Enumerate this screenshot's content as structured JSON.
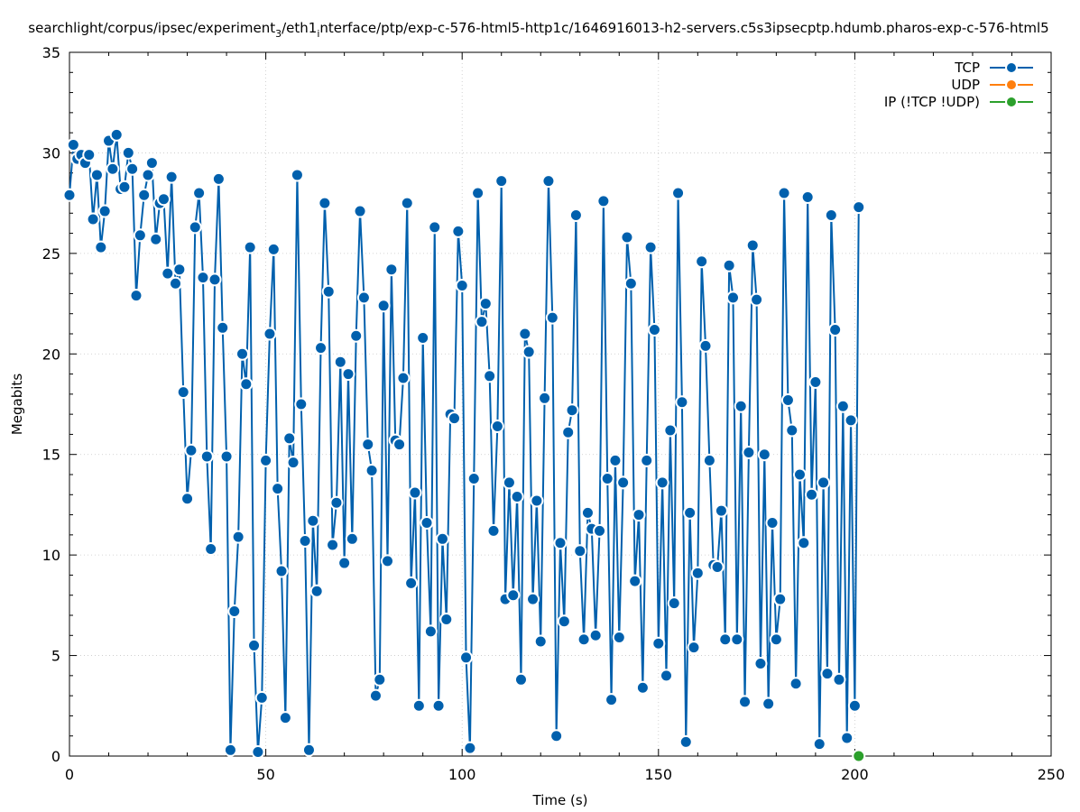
{
  "chart_data": {
    "type": "line",
    "title": "searchlight/corpus/ipsec/experiment",
    "title_sub": "3",
    "title_mid": "/eth1",
    "title_sub2": "i",
    "title_rest": "nterface/ptp/exp-c-576-html5-http1c/1646916013-h2-servers.c5s3ipsecptp.hdumb.pharos-exp-c-576-html5",
    "xlabel": "Time (s)",
    "ylabel": "Megabits",
    "xlim": [
      0,
      250
    ],
    "ylim": [
      0,
      35
    ],
    "xticks": [
      0,
      50,
      100,
      150,
      200,
      250
    ],
    "yticks": [
      0,
      5,
      10,
      15,
      20,
      25,
      30,
      35
    ],
    "grid": true,
    "legend_position": "top-right",
    "series": [
      {
        "name": "TCP",
        "color": "#0060ad",
        "points": [
          [
            0,
            27.9
          ],
          [
            1,
            30.4
          ],
          [
            2,
            29.7
          ],
          [
            3,
            29.9
          ],
          [
            4,
            29.5
          ],
          [
            5,
            29.9
          ],
          [
            6,
            26.7
          ],
          [
            7,
            28.9
          ],
          [
            8,
            25.3
          ],
          [
            9,
            27.1
          ],
          [
            10,
            30.6
          ],
          [
            11,
            29.2
          ],
          [
            12,
            30.9
          ],
          [
            13,
            28.2
          ],
          [
            14,
            28.3
          ],
          [
            15,
            30.0
          ],
          [
            16,
            29.2
          ],
          [
            17,
            22.9
          ],
          [
            18,
            25.9
          ],
          [
            19,
            27.9
          ],
          [
            20,
            28.9
          ],
          [
            21,
            29.5
          ],
          [
            22,
            25.7
          ],
          [
            23,
            27.5
          ],
          [
            24,
            27.7
          ],
          [
            25,
            24.0
          ],
          [
            26,
            28.8
          ],
          [
            27,
            23.5
          ],
          [
            28,
            24.2
          ],
          [
            29,
            18.1
          ],
          [
            30,
            12.8
          ],
          [
            31,
            15.2
          ],
          [
            32,
            26.3
          ],
          [
            33,
            28.0
          ],
          [
            34,
            23.8
          ],
          [
            35,
            14.9
          ],
          [
            36,
            10.3
          ],
          [
            37,
            23.7
          ],
          [
            38,
            28.7
          ],
          [
            39,
            21.3
          ],
          [
            40,
            14.9
          ],
          [
            41,
            0.3
          ],
          [
            42,
            7.2
          ],
          [
            43,
            10.9
          ],
          [
            44,
            20.0
          ],
          [
            45,
            18.5
          ],
          [
            46,
            25.3
          ],
          [
            47,
            5.5
          ],
          [
            48,
            0.2
          ],
          [
            49,
            2.9
          ],
          [
            50,
            14.7
          ],
          [
            51,
            21.0
          ],
          [
            52,
            25.2
          ],
          [
            53,
            13.3
          ],
          [
            54,
            9.2
          ],
          [
            55,
            1.9
          ],
          [
            56,
            15.8
          ],
          [
            57,
            14.6
          ],
          [
            58,
            28.9
          ],
          [
            59,
            17.5
          ],
          [
            60,
            10.7
          ],
          [
            61,
            0.3
          ],
          [
            62,
            11.7
          ],
          [
            63,
            8.2
          ],
          [
            64,
            20.3
          ],
          [
            65,
            27.5
          ],
          [
            66,
            23.1
          ],
          [
            67,
            10.5
          ],
          [
            68,
            12.6
          ],
          [
            69,
            19.6
          ],
          [
            70,
            9.6
          ],
          [
            71,
            19.0
          ],
          [
            72,
            10.8
          ],
          [
            73,
            20.9
          ],
          [
            74,
            27.1
          ],
          [
            75,
            22.8
          ],
          [
            76,
            15.5
          ],
          [
            77,
            14.2
          ],
          [
            78,
            3.0
          ],
          [
            79,
            3.8
          ],
          [
            80,
            22.4
          ],
          [
            81,
            9.7
          ],
          [
            82,
            24.2
          ],
          [
            83,
            15.7
          ],
          [
            84,
            15.5
          ],
          [
            85,
            18.8
          ],
          [
            86,
            27.5
          ],
          [
            87,
            8.6
          ],
          [
            88,
            13.1
          ],
          [
            89,
            2.5
          ],
          [
            90,
            20.8
          ],
          [
            91,
            11.6
          ],
          [
            92,
            6.2
          ],
          [
            93,
            26.3
          ],
          [
            94,
            2.5
          ],
          [
            95,
            10.8
          ],
          [
            96,
            6.8
          ],
          [
            97,
            17.0
          ],
          [
            98,
            16.8
          ],
          [
            99,
            26.1
          ],
          [
            100,
            23.4
          ],
          [
            101,
            4.9
          ],
          [
            102,
            0.4
          ],
          [
            103,
            13.8
          ],
          [
            104,
            28.0
          ],
          [
            105,
            21.6
          ],
          [
            106,
            22.5
          ],
          [
            107,
            18.9
          ],
          [
            108,
            11.2
          ],
          [
            109,
            16.4
          ],
          [
            110,
            28.6
          ],
          [
            111,
            7.8
          ],
          [
            112,
            13.6
          ],
          [
            113,
            8.0
          ],
          [
            114,
            12.9
          ],
          [
            115,
            3.8
          ],
          [
            116,
            21.0
          ],
          [
            117,
            20.1
          ],
          [
            118,
            7.8
          ],
          [
            119,
            12.7
          ],
          [
            120,
            5.7
          ],
          [
            121,
            17.8
          ],
          [
            122,
            28.6
          ],
          [
            123,
            21.8
          ],
          [
            124,
            1.0
          ],
          [
            125,
            10.6
          ],
          [
            126,
            6.7
          ],
          [
            127,
            16.1
          ],
          [
            128,
            17.2
          ],
          [
            129,
            26.9
          ],
          [
            130,
            10.2
          ],
          [
            131,
            5.8
          ],
          [
            132,
            12.1
          ],
          [
            133,
            11.3
          ],
          [
            134,
            6.0
          ],
          [
            135,
            11.2
          ],
          [
            136,
            27.6
          ],
          [
            137,
            13.8
          ],
          [
            138,
            2.8
          ],
          [
            139,
            14.7
          ],
          [
            140,
            5.9
          ],
          [
            141,
            13.6
          ],
          [
            142,
            25.8
          ],
          [
            143,
            23.5
          ],
          [
            144,
            8.7
          ],
          [
            145,
            12.0
          ],
          [
            146,
            3.4
          ],
          [
            147,
            14.7
          ],
          [
            148,
            25.3
          ],
          [
            149,
            21.2
          ],
          [
            150,
            5.6
          ],
          [
            151,
            13.6
          ],
          [
            152,
            4.0
          ],
          [
            153,
            16.2
          ],
          [
            154,
            7.6
          ],
          [
            155,
            28.0
          ],
          [
            156,
            17.6
          ],
          [
            157,
            0.7
          ],
          [
            158,
            12.1
          ],
          [
            159,
            5.4
          ],
          [
            160,
            9.1
          ],
          [
            161,
            24.6
          ],
          [
            162,
            20.4
          ],
          [
            163,
            14.7
          ],
          [
            164,
            9.5
          ],
          [
            165,
            9.4
          ],
          [
            166,
            12.2
          ],
          [
            167,
            5.8
          ],
          [
            168,
            24.4
          ],
          [
            169,
            22.8
          ],
          [
            170,
            5.8
          ],
          [
            171,
            17.4
          ],
          [
            172,
            2.7
          ],
          [
            173,
            15.1
          ],
          [
            174,
            25.4
          ],
          [
            175,
            22.7
          ],
          [
            176,
            4.6
          ],
          [
            177,
            15.0
          ],
          [
            178,
            2.6
          ],
          [
            179,
            11.6
          ],
          [
            180,
            5.8
          ],
          [
            181,
            7.8
          ],
          [
            182,
            28.0
          ],
          [
            183,
            17.7
          ],
          [
            184,
            16.2
          ],
          [
            185,
            3.6
          ],
          [
            186,
            14.0
          ],
          [
            187,
            10.6
          ],
          [
            188,
            27.8
          ],
          [
            189,
            13.0
          ],
          [
            190,
            18.6
          ],
          [
            191,
            0.6
          ],
          [
            192,
            13.6
          ],
          [
            193,
            4.1
          ],
          [
            194,
            26.9
          ],
          [
            195,
            21.2
          ],
          [
            196,
            3.8
          ],
          [
            197,
            17.4
          ],
          [
            198,
            0.9
          ],
          [
            199,
            16.7
          ],
          [
            200,
            2.5
          ],
          [
            201,
            27.3
          ]
        ]
      },
      {
        "name": "UDP",
        "color": "#ff7f0e",
        "points": []
      },
      {
        "name": "IP (!TCP  !UDP)",
        "color": "#2ca02c",
        "points": [
          [
            201,
            0
          ]
        ]
      }
    ]
  }
}
